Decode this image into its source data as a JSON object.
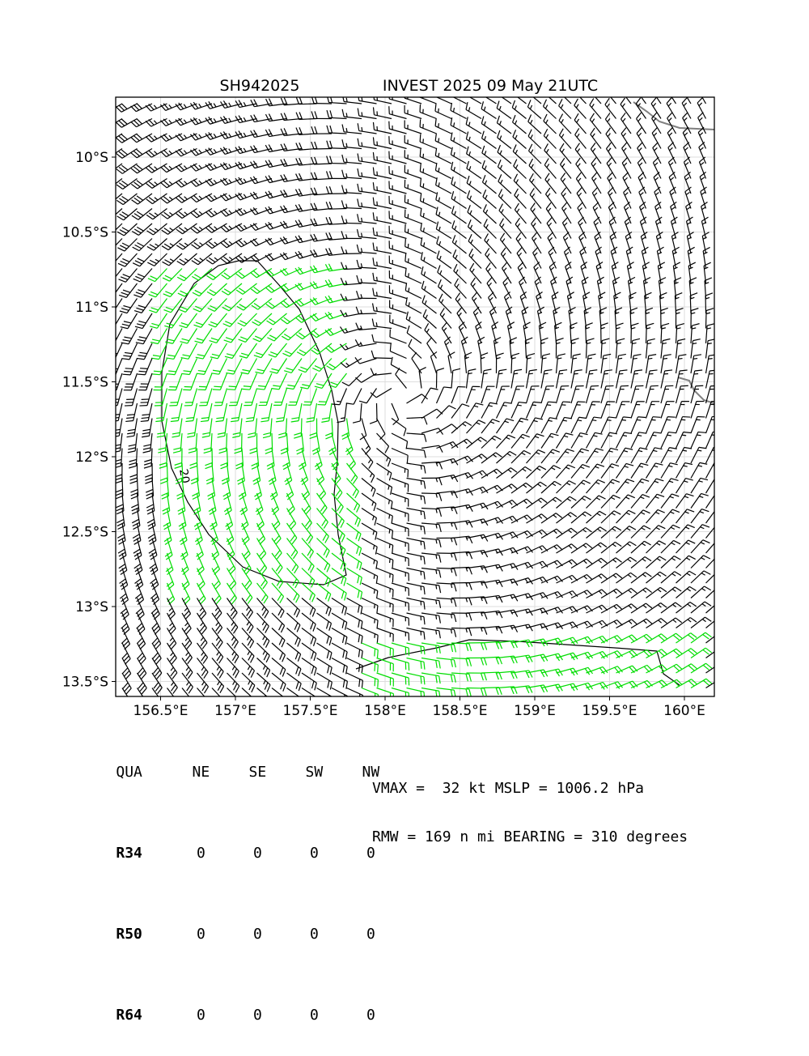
{
  "chart_data": {
    "type": "wind_barb_map",
    "title_left": "SH942025",
    "title_right": "INVEST 2025 09 May 21UTC",
    "x_ticks": [
      "156.5°E",
      "157°E",
      "157.5°E",
      "158°E",
      "158.5°E",
      "159°E",
      "159.5°E",
      "160°E"
    ],
    "x_tick_values": [
      156.5,
      157.0,
      157.5,
      158.0,
      158.5,
      159.0,
      159.5,
      160.0
    ],
    "y_ticks": [
      "10°S",
      "10.5°S",
      "11°S",
      "11.5°S",
      "12°S",
      "12.5°S",
      "13°S",
      "13.5°S"
    ],
    "y_tick_values": [
      -10.0,
      -10.5,
      -11.0,
      -11.5,
      -12.0,
      -12.5,
      -13.0,
      -13.5
    ],
    "xlim": [
      156.2,
      160.2
    ],
    "ylim": [
      -13.6,
      -9.6
    ],
    "grid": true,
    "storm_center": {
      "lon": 158.1,
      "lat": -11.6
    },
    "wind_contour_label": "20",
    "colors": {
      "barb_weak": "#000000",
      "barb_strong": "#00dd00",
      "coast": "#808080",
      "grid": "#dddddd"
    }
  },
  "table": {
    "header": [
      "QUA",
      "NE",
      "SE",
      "SW",
      "NW"
    ],
    "rows": [
      {
        "label": "R34",
        "values": [
          "0",
          "0",
          "0",
          "0"
        ]
      },
      {
        "label": "R50",
        "values": [
          "0",
          "0",
          "0",
          "0"
        ]
      },
      {
        "label": "R64",
        "values": [
          "0",
          "0",
          "0",
          "0"
        ]
      }
    ]
  },
  "info": {
    "line1": "VMAX =  32 kt MSLP = 1006.2 hPa",
    "line2": "RMW = 169 n mi BEARING = 310 degrees"
  }
}
